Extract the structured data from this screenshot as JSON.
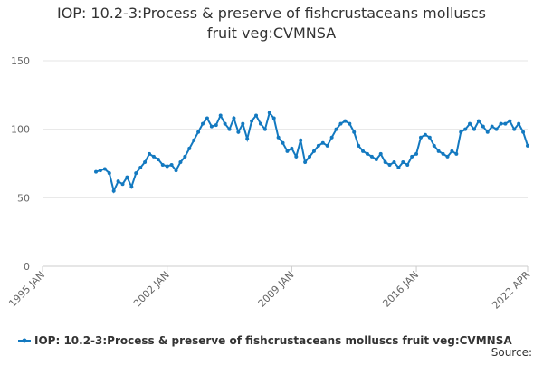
{
  "chart_data": {
    "type": "line",
    "title": "IOP: 10.2-3:Process & preserve of fishcrustaceans molluscs fruit veg:CVMNSA",
    "source": "Source:",
    "x": [
      "1998 JAN",
      "1998 APR",
      "1998 JUL",
      "1998 OCT",
      "1999 JAN",
      "1999 APR",
      "1999 JUL",
      "1999 OCT",
      "2000 JAN",
      "2000 APR",
      "2000 JUL",
      "2000 OCT",
      "2001 JAN",
      "2001 APR",
      "2001 JUL",
      "2001 OCT",
      "2002 JAN",
      "2002 APR",
      "2002 JUL",
      "2002 OCT",
      "2003 JAN",
      "2003 APR",
      "2003 JUL",
      "2003 OCT",
      "2004 JAN",
      "2004 APR",
      "2004 JUL",
      "2004 OCT",
      "2005 JAN",
      "2005 APR",
      "2005 JUL",
      "2005 OCT",
      "2006 JAN",
      "2006 APR",
      "2006 JUL",
      "2006 OCT",
      "2007 JAN",
      "2007 APR",
      "2007 JUL",
      "2007 OCT",
      "2008 JAN",
      "2008 APR",
      "2008 JUL",
      "2008 OCT",
      "2009 JAN",
      "2009 APR",
      "2009 JUL",
      "2009 OCT",
      "2010 JAN",
      "2010 APR",
      "2010 JUL",
      "2010 OCT",
      "2011 JAN",
      "2011 APR",
      "2011 JUL",
      "2011 OCT",
      "2012 JAN",
      "2012 APR",
      "2012 JUL",
      "2012 OCT",
      "2013 JAN",
      "2013 APR",
      "2013 JUL",
      "2013 OCT",
      "2014 JAN",
      "2014 APR",
      "2014 JUL",
      "2014 OCT",
      "2015 JAN",
      "2015 APR",
      "2015 JUL",
      "2015 OCT",
      "2016 JAN",
      "2016 APR",
      "2016 JUL",
      "2016 OCT",
      "2017 JAN",
      "2017 APR",
      "2017 JUL",
      "2017 OCT",
      "2018 JAN",
      "2018 APR",
      "2018 JUL",
      "2018 OCT",
      "2019 JAN",
      "2019 APR",
      "2019 JUL",
      "2019 OCT",
      "2020 JAN",
      "2020 APR",
      "2020 JUL",
      "2020 OCT",
      "2021 JAN",
      "2021 APR",
      "2021 JUL",
      "2021 OCT",
      "2022 JAN",
      "2022 APR"
    ],
    "series": [
      {
        "name": "IOP: 10.2-3:Process & preserve of fishcrustaceans molluscs fruit veg:CVMNSA",
        "color": "#1379c0",
        "values": [
          69,
          70,
          71,
          68,
          55,
          62,
          60,
          65,
          58,
          68,
          72,
          76,
          82,
          80,
          78,
          74,
          73,
          74,
          70,
          76,
          80,
          86,
          92,
          98,
          104,
          108,
          102,
          103,
          110,
          104,
          100,
          108,
          98,
          104,
          93,
          106,
          110,
          104,
          100,
          112,
          108,
          94,
          90,
          84,
          86,
          80,
          92,
          76,
          80,
          84,
          88,
          90,
          88,
          94,
          100,
          104,
          106,
          104,
          98,
          88,
          84,
          82,
          80,
          78,
          82,
          76,
          74,
          76,
          72,
          76,
          74,
          80,
          82,
          94,
          96,
          94,
          88,
          84,
          82,
          80,
          84,
          82,
          98,
          100,
          104,
          100,
          106,
          102,
          98,
          102,
          100,
          104,
          104,
          106,
          100,
          104,
          98,
          88
        ]
      }
    ],
    "xlim": [
      "1995 JAN",
      "2022 APR"
    ],
    "xticks": [
      "1995 JAN",
      "2002 JAN",
      "2009 JAN",
      "2016 JAN",
      "2022 APR"
    ],
    "ylim": [
      0,
      150
    ],
    "yticks": [
      0,
      50,
      100,
      150
    ],
    "grid": true
  }
}
